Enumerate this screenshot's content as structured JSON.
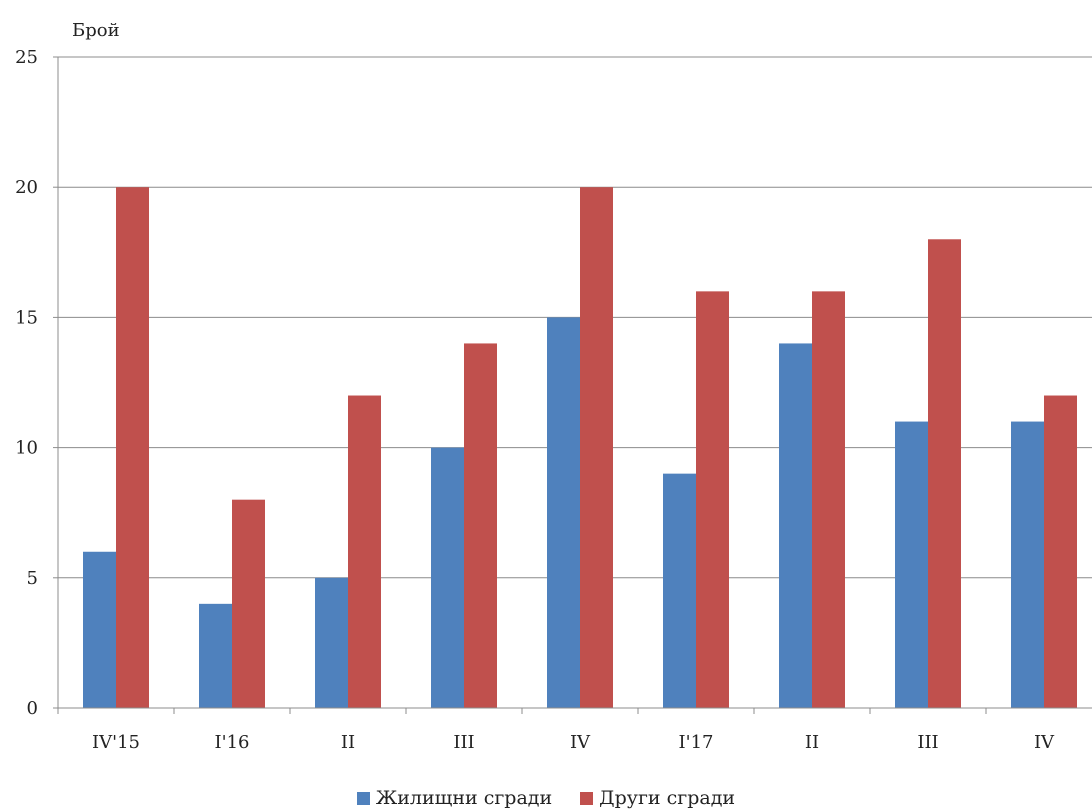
{
  "chart_data": {
    "type": "bar",
    "ylabel": "Брой",
    "xlabel": "",
    "title": "",
    "ylim": [
      0,
      25
    ],
    "yticks": [
      0,
      5,
      10,
      15,
      20,
      25
    ],
    "grid": true,
    "legend_position": "bottom",
    "categories": [
      "IV'15",
      "I'16",
      "II",
      "III",
      "IV",
      "I'17",
      "II",
      "III",
      "IV"
    ],
    "series": [
      {
        "name": "Жилищни сгради",
        "color": "#4F81BD",
        "values": [
          6,
          4,
          5,
          10,
          15,
          9,
          14,
          11,
          11
        ]
      },
      {
        "name": "Други сгради",
        "color": "#C0504D",
        "values": [
          20,
          8,
          12,
          14,
          20,
          16,
          16,
          18,
          12
        ]
      }
    ]
  }
}
